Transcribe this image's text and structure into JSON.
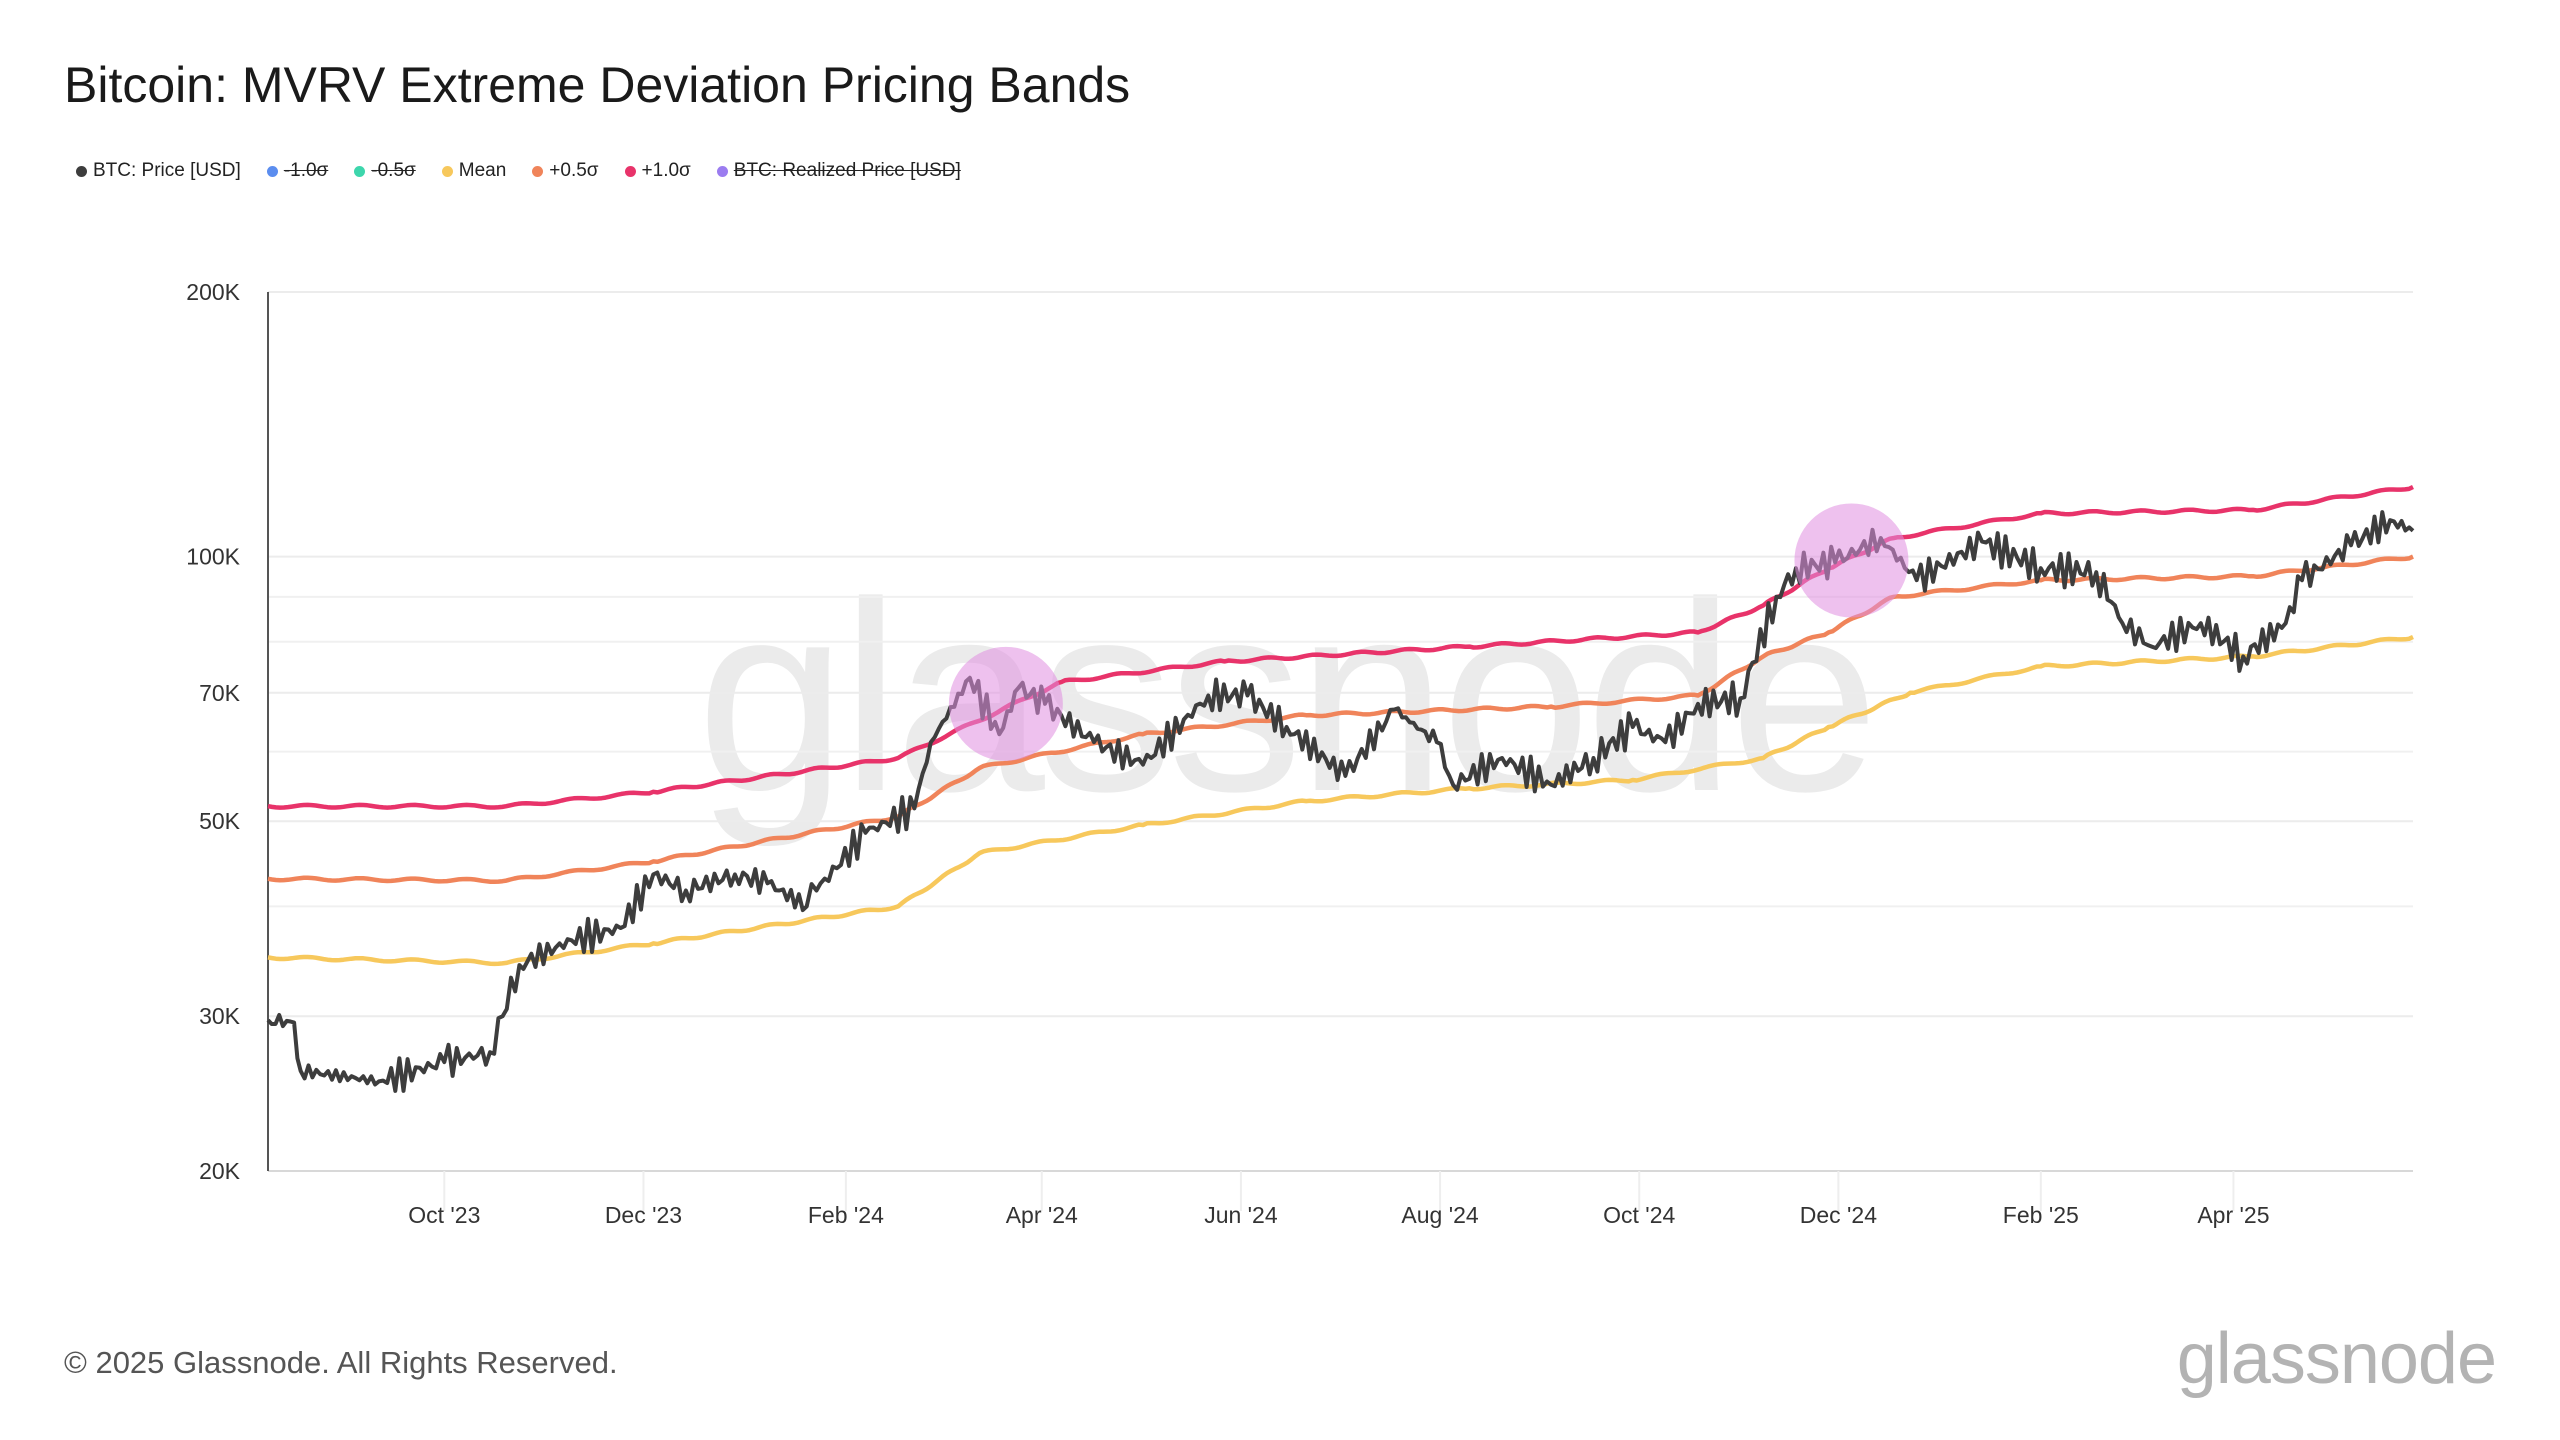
{
  "title": "Bitcoin: MVRV Extreme Deviation Pricing Bands",
  "footer": "© 2025 Glassnode. All Rights Reserved.",
  "logo": "glassnode",
  "watermark": "glassnode",
  "legend": [
    {
      "label": "BTC: Price [USD]",
      "color": "#3d3d3d",
      "active": true
    },
    {
      "label": "-1.0σ",
      "color": "#5b8def",
      "active": false
    },
    {
      "label": "-0.5σ",
      "color": "#3dd6ac",
      "active": false
    },
    {
      "label": "Mean",
      "color": "#f7c85c",
      "active": true
    },
    {
      "label": "+0.5σ",
      "color": "#f0845a",
      "active": true
    },
    {
      "label": "+1.0σ",
      "color": "#e8336a",
      "active": true
    },
    {
      "label": "BTC: Realized Price [USD]",
      "color": "#9b7cf0",
      "active": false
    }
  ],
  "chart_data": {
    "type": "line",
    "title": "Bitcoin: MVRV Extreme Deviation Pricing Bands",
    "yscale": "log",
    "ylim": [
      20000,
      200000
    ],
    "xlim": [
      "2023-08-08",
      "2025-05-26"
    ],
    "y_ticks": [
      {
        "value": 20000,
        "label": "20K"
      },
      {
        "value": 30000,
        "label": "30K"
      },
      {
        "value": 50000,
        "label": "50K"
      },
      {
        "value": 70000,
        "label": "70K"
      },
      {
        "value": 100000,
        "label": "100K"
      },
      {
        "value": 200000,
        "label": "200K"
      }
    ],
    "x_ticks": [
      {
        "date": "2023-10-01",
        "label": "Oct '23"
      },
      {
        "date": "2023-12-01",
        "label": "Dec '23"
      },
      {
        "date": "2024-02-01",
        "label": "Feb '24"
      },
      {
        "date": "2024-04-01",
        "label": "Apr '24"
      },
      {
        "date": "2024-06-01",
        "label": "Jun '24"
      },
      {
        "date": "2024-08-01",
        "label": "Aug '24"
      },
      {
        "date": "2024-10-01",
        "label": "Oct '24"
      },
      {
        "date": "2024-12-01",
        "label": "Dec '24"
      },
      {
        "date": "2025-02-01",
        "label": "Feb '25"
      },
      {
        "date": "2025-04-01",
        "label": "Apr '25"
      }
    ],
    "grid": true,
    "legend_position": "top-left",
    "series": [
      {
        "name": "BTC: Price [USD]",
        "color": "#3d3d3d",
        "points": [
          [
            "2023-08-08",
            29700
          ],
          [
            "2023-08-16",
            29500
          ],
          [
            "2023-08-18",
            26000
          ],
          [
            "2023-09-11",
            25300
          ],
          [
            "2023-10-01",
            26600
          ],
          [
            "2023-10-15",
            27300
          ],
          [
            "2023-10-24",
            34300
          ],
          [
            "2023-11-09",
            36600
          ],
          [
            "2023-11-24",
            37800
          ],
          [
            "2023-12-04",
            43500
          ],
          [
            "2023-12-14",
            41700
          ],
          [
            "2023-12-29",
            43500
          ],
          [
            "2024-01-08",
            42500
          ],
          [
            "2024-01-20",
            40000
          ],
          [
            "2024-01-23",
            41700
          ],
          [
            "2024-02-07",
            48500
          ],
          [
            "2024-02-22",
            51700
          ],
          [
            "2024-02-27",
            61500
          ],
          [
            "2024-03-10",
            72800
          ],
          [
            "2024-03-19",
            62800
          ],
          [
            "2024-03-25",
            71000
          ],
          [
            "2024-04-02",
            68000
          ],
          [
            "2024-04-17",
            61500
          ],
          [
            "2024-05-02",
            58000
          ],
          [
            "2024-05-22",
            69500
          ],
          [
            "2024-06-03",
            69500
          ],
          [
            "2024-06-15",
            64000
          ],
          [
            "2024-07-03",
            56300
          ],
          [
            "2024-07-18",
            67000
          ],
          [
            "2024-07-31",
            61500
          ],
          [
            "2024-08-05",
            55000
          ],
          [
            "2024-08-20",
            59000
          ],
          [
            "2024-09-04",
            55000
          ],
          [
            "2024-09-17",
            59000
          ],
          [
            "2024-09-29",
            64000
          ],
          [
            "2024-10-09",
            61500
          ],
          [
            "2024-10-19",
            68000
          ],
          [
            "2024-11-01",
            69000
          ],
          [
            "2024-11-12",
            90000
          ],
          [
            "2024-11-18",
            97000
          ],
          [
            "2024-11-30",
            98500
          ],
          [
            "2024-12-14",
            105000
          ],
          [
            "2024-12-25",
            94000
          ],
          [
            "2025-01-14",
            104000
          ],
          [
            "2025-02-01",
            97000
          ],
          [
            "2025-02-18",
            96000
          ],
          [
            "2025-02-26",
            84000
          ],
          [
            "2025-03-07",
            79000
          ],
          [
            "2025-03-22",
            84000
          ],
          [
            "2025-04-04",
            77000
          ],
          [
            "2025-04-17",
            84000
          ],
          [
            "2025-04-22",
            94000
          ],
          [
            "2025-05-07",
            103000
          ],
          [
            "2025-05-19",
            110000
          ],
          [
            "2025-05-26",
            107000
          ]
        ]
      },
      {
        "name": "+1.0σ",
        "color": "#e8336a",
        "points": [
          [
            "2023-08-08",
            52000
          ],
          [
            "2023-10-20",
            52000
          ],
          [
            "2023-12-04",
            54000
          ],
          [
            "2024-02-17",
            59000
          ],
          [
            "2024-04-07",
            72000
          ],
          [
            "2024-05-27",
            76000
          ],
          [
            "2024-08-10",
            79000
          ],
          [
            "2024-10-19",
            82000
          ],
          [
            "2024-11-08",
            88000
          ],
          [
            "2024-11-28",
            97000
          ],
          [
            "2024-12-18",
            105000
          ],
          [
            "2025-02-01",
            112000
          ],
          [
            "2025-04-07",
            113000
          ],
          [
            "2025-05-26",
            120000
          ]
        ]
      },
      {
        "name": "+0.5σ",
        "color": "#f0845a",
        "points": [
          [
            "2023-08-08",
            43000
          ],
          [
            "2023-10-20",
            42800
          ],
          [
            "2023-12-04",
            45000
          ],
          [
            "2024-02-17",
            50600
          ],
          [
            "2024-03-13",
            57500
          ],
          [
            "2024-05-02",
            62800
          ],
          [
            "2024-06-21",
            66000
          ],
          [
            "2024-09-04",
            67500
          ],
          [
            "2024-10-19",
            69500
          ],
          [
            "2024-11-08",
            77000
          ],
          [
            "2024-11-28",
            82000
          ],
          [
            "2024-12-18",
            90000
          ],
          [
            "2025-02-01",
            94000
          ],
          [
            "2025-04-07",
            95000
          ],
          [
            "2025-05-26",
            100000
          ]
        ]
      },
      {
        "name": "Mean",
        "color": "#f7c85c",
        "points": [
          [
            "2023-08-08",
            35000
          ],
          [
            "2023-10-20",
            34500
          ],
          [
            "2023-12-04",
            36300
          ],
          [
            "2024-02-17",
            40000
          ],
          [
            "2024-03-13",
            46000
          ],
          [
            "2024-05-02",
            49500
          ],
          [
            "2024-06-21",
            52700
          ],
          [
            "2024-08-10",
            54500
          ],
          [
            "2024-09-29",
            55700
          ],
          [
            "2024-11-08",
            59000
          ],
          [
            "2024-11-28",
            64000
          ],
          [
            "2024-12-23",
            70000
          ],
          [
            "2025-02-01",
            75000
          ],
          [
            "2025-04-07",
            77000
          ],
          [
            "2025-05-26",
            81000
          ]
        ]
      }
    ],
    "highlights": [
      {
        "date": "2024-03-21",
        "value": 68000,
        "color": "#e08ee0"
      },
      {
        "date": "2024-12-05",
        "value": 99000,
        "color": "#e08ee0"
      }
    ]
  }
}
